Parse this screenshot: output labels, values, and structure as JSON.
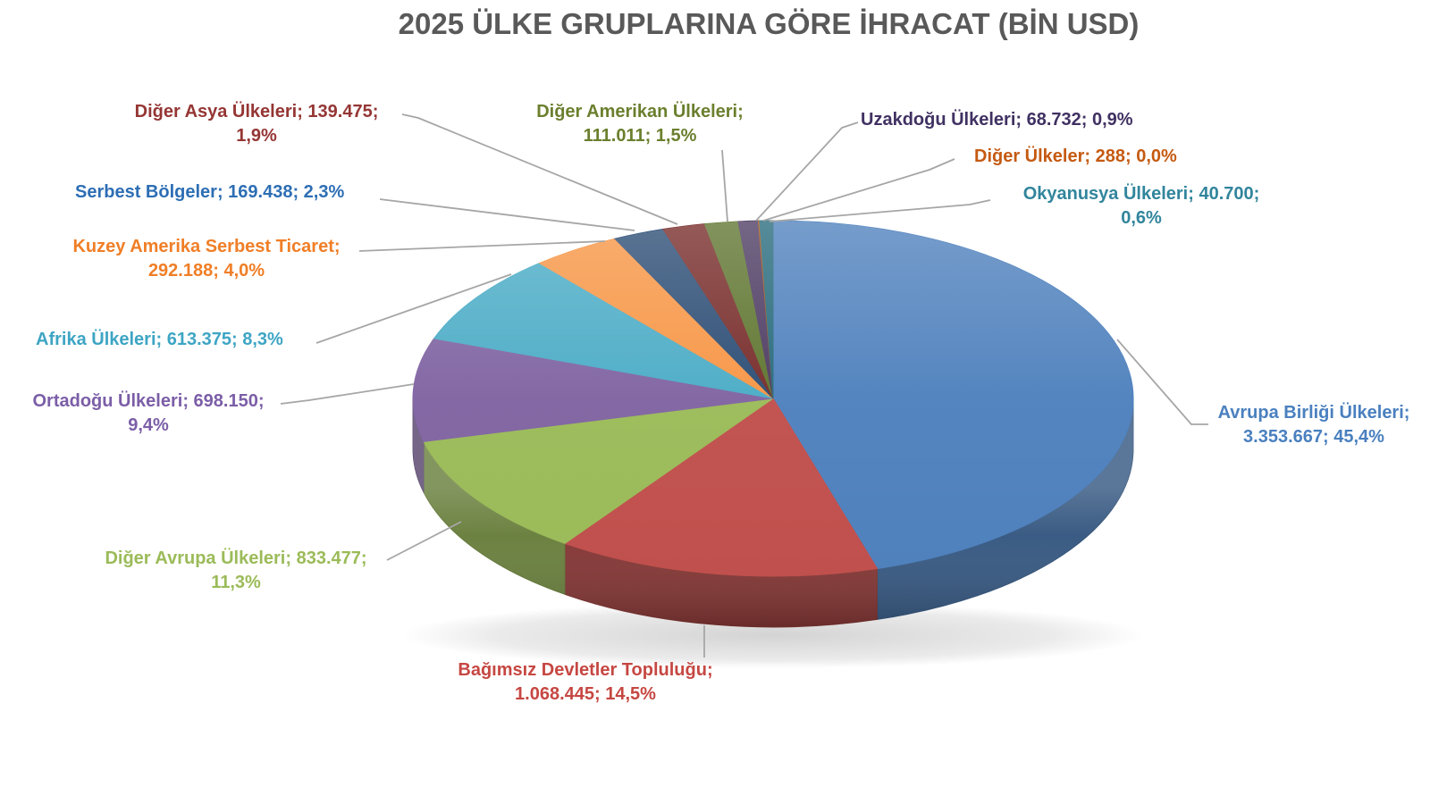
{
  "title": {
    "text": "2025 ÜLKE GRUPLARINA GÖRE İHRACAT (BİN USD)",
    "color": "#595959"
  },
  "chart_data": {
    "type": "pie",
    "style": "3d",
    "title": "2025 ÜLKE GRUPLARINA GÖRE İHRACAT (BİN USD)",
    "unit": "BİN USD",
    "start_angle": "12 o'clock",
    "direction": "clockwise",
    "legend_position": "none (data labels with gray leader lines)",
    "leader_line_color": "#A6A6A6",
    "slices": [
      {
        "id": "eu",
        "name": "Avrupa Birliği Ülkeleri",
        "value": 3353667,
        "pct": 45.4,
        "color": "#4F81BD",
        "label_color": "#4A80BF",
        "label_lines": [
          "Avrupa Birliği Ülkeleri;",
          "3.353.667; 45,4%"
        ]
      },
      {
        "id": "cis",
        "name": "Bağımsız Devletler Topluluğu",
        "value": 1068445,
        "pct": 14.5,
        "color": "#C0504D",
        "label_color": "#C64742",
        "label_lines": [
          "Bağımsız Devletler Topluluğu;",
          "1.068.445; 14,5%"
        ]
      },
      {
        "id": "other-europe",
        "name": "Diğer Avrupa Ülkeleri",
        "value": 833477,
        "pct": 11.3,
        "color": "#9BBB59",
        "label_color": "#9BBB59",
        "label_lines": [
          "Diğer Avrupa Ülkeleri; 833.477;",
          "11,3%"
        ]
      },
      {
        "id": "middle-east",
        "name": "Ortadoğu Ülkeleri",
        "value": 698150,
        "pct": 9.4,
        "color": "#8064A2",
        "label_color": "#7B5EA7",
        "label_lines": [
          "Ortadoğu Ülkeleri; 698.150;",
          "9,4%"
        ]
      },
      {
        "id": "africa",
        "name": "Afrika Ülkeleri",
        "value": 613375,
        "pct": 8.3,
        "color": "#4BACC6",
        "label_color": "#3EA5C4",
        "label_lines": [
          "Afrika Ülkeleri; 613.375; 8,3%"
        ]
      },
      {
        "id": "nafta",
        "name": "Kuzey Amerika Serbest Ticaret",
        "value": 292188,
        "pct": 4.0,
        "color": "#F79646",
        "label_color": "#F07E26",
        "label_lines": [
          "Kuzey Amerika Serbest Ticaret;",
          "292.188; 4,0%"
        ]
      },
      {
        "id": "free-zones",
        "name": "Serbest Bölgeler",
        "value": 169438,
        "pct": 2.3,
        "color": "#2C4D75",
        "label_color": "#2D6EB4",
        "label_lines": [
          "Serbest Bölgeler; 169.438; 2,3%"
        ]
      },
      {
        "id": "other-asia",
        "name": "Diğer Asya Ülkeleri",
        "value": 139475,
        "pct": 1.9,
        "color": "#772C2A",
        "label_color": "#943634",
        "label_lines": [
          "Diğer Asya Ülkeleri; 139.475;",
          "1,9%"
        ]
      },
      {
        "id": "other-america",
        "name": "Diğer Amerikan Ülkeleri",
        "value": 111011,
        "pct": 1.5,
        "color": "#5F7530",
        "label_color": "#6B7F2E",
        "label_lines": [
          "Diğer Amerikan Ülkeleri;",
          "111.011; 1,5%"
        ]
      },
      {
        "id": "far-east",
        "name": "Uzakdoğu Ülkeleri",
        "value": 68732,
        "pct": 0.9,
        "color": "#4D3B62",
        "label_color": "#403162",
        "label_lines": [
          "Uzakdoğu Ülkeleri; 68.732; 0,9%"
        ]
      },
      {
        "id": "other-countries",
        "name": "Diğer Ülkeler",
        "value": 288,
        "pct": 0.0,
        "color": "#B65708",
        "label_color": "#C55A11",
        "label_lines": [
          "Diğer Ülkeler; 288; 0,0%"
        ]
      },
      {
        "id": "oceania",
        "name": "Okyanusya Ülkeleri",
        "value": 40700,
        "pct": 0.6,
        "color": "#276A7C",
        "label_color": "#31859C",
        "label_lines": [
          "Okyanusya Ülkeleri; 40.700;",
          "0,6%"
        ]
      }
    ]
  }
}
